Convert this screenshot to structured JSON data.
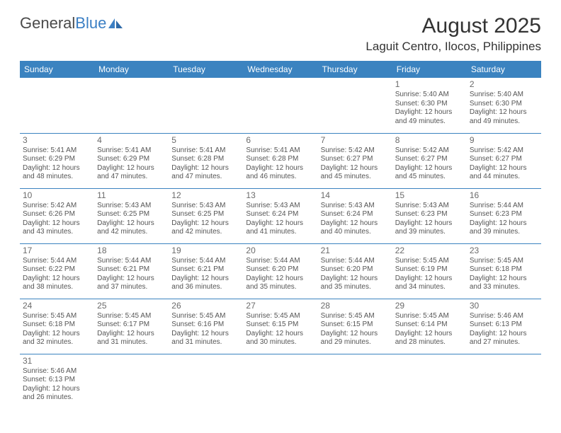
{
  "logo": {
    "text1": "General",
    "text2": "Blue"
  },
  "title": "August 2025",
  "location": "Laguit Centro, Ilocos, Philippines",
  "colors": {
    "header_bg": "#3b83c0",
    "header_text": "#ffffff",
    "border": "#3b83c0",
    "text": "#555555",
    "daynum": "#6b6b6b",
    "title": "#333333"
  },
  "day_headers": [
    "Sunday",
    "Monday",
    "Tuesday",
    "Wednesday",
    "Thursday",
    "Friday",
    "Saturday"
  ],
  "weeks": [
    [
      null,
      null,
      null,
      null,
      null,
      {
        "n": "1",
        "sr": "Sunrise: 5:40 AM",
        "ss": "Sunset: 6:30 PM",
        "d1": "Daylight: 12 hours",
        "d2": "and 49 minutes."
      },
      {
        "n": "2",
        "sr": "Sunrise: 5:40 AM",
        "ss": "Sunset: 6:30 PM",
        "d1": "Daylight: 12 hours",
        "d2": "and 49 minutes."
      }
    ],
    [
      {
        "n": "3",
        "sr": "Sunrise: 5:41 AM",
        "ss": "Sunset: 6:29 PM",
        "d1": "Daylight: 12 hours",
        "d2": "and 48 minutes."
      },
      {
        "n": "4",
        "sr": "Sunrise: 5:41 AM",
        "ss": "Sunset: 6:29 PM",
        "d1": "Daylight: 12 hours",
        "d2": "and 47 minutes."
      },
      {
        "n": "5",
        "sr": "Sunrise: 5:41 AM",
        "ss": "Sunset: 6:28 PM",
        "d1": "Daylight: 12 hours",
        "d2": "and 47 minutes."
      },
      {
        "n": "6",
        "sr": "Sunrise: 5:41 AM",
        "ss": "Sunset: 6:28 PM",
        "d1": "Daylight: 12 hours",
        "d2": "and 46 minutes."
      },
      {
        "n": "7",
        "sr": "Sunrise: 5:42 AM",
        "ss": "Sunset: 6:27 PM",
        "d1": "Daylight: 12 hours",
        "d2": "and 45 minutes."
      },
      {
        "n": "8",
        "sr": "Sunrise: 5:42 AM",
        "ss": "Sunset: 6:27 PM",
        "d1": "Daylight: 12 hours",
        "d2": "and 45 minutes."
      },
      {
        "n": "9",
        "sr": "Sunrise: 5:42 AM",
        "ss": "Sunset: 6:27 PM",
        "d1": "Daylight: 12 hours",
        "d2": "and 44 minutes."
      }
    ],
    [
      {
        "n": "10",
        "sr": "Sunrise: 5:42 AM",
        "ss": "Sunset: 6:26 PM",
        "d1": "Daylight: 12 hours",
        "d2": "and 43 minutes."
      },
      {
        "n": "11",
        "sr": "Sunrise: 5:43 AM",
        "ss": "Sunset: 6:25 PM",
        "d1": "Daylight: 12 hours",
        "d2": "and 42 minutes."
      },
      {
        "n": "12",
        "sr": "Sunrise: 5:43 AM",
        "ss": "Sunset: 6:25 PM",
        "d1": "Daylight: 12 hours",
        "d2": "and 42 minutes."
      },
      {
        "n": "13",
        "sr": "Sunrise: 5:43 AM",
        "ss": "Sunset: 6:24 PM",
        "d1": "Daylight: 12 hours",
        "d2": "and 41 minutes."
      },
      {
        "n": "14",
        "sr": "Sunrise: 5:43 AM",
        "ss": "Sunset: 6:24 PM",
        "d1": "Daylight: 12 hours",
        "d2": "and 40 minutes."
      },
      {
        "n": "15",
        "sr": "Sunrise: 5:43 AM",
        "ss": "Sunset: 6:23 PM",
        "d1": "Daylight: 12 hours",
        "d2": "and 39 minutes."
      },
      {
        "n": "16",
        "sr": "Sunrise: 5:44 AM",
        "ss": "Sunset: 6:23 PM",
        "d1": "Daylight: 12 hours",
        "d2": "and 39 minutes."
      }
    ],
    [
      {
        "n": "17",
        "sr": "Sunrise: 5:44 AM",
        "ss": "Sunset: 6:22 PM",
        "d1": "Daylight: 12 hours",
        "d2": "and 38 minutes."
      },
      {
        "n": "18",
        "sr": "Sunrise: 5:44 AM",
        "ss": "Sunset: 6:21 PM",
        "d1": "Daylight: 12 hours",
        "d2": "and 37 minutes."
      },
      {
        "n": "19",
        "sr": "Sunrise: 5:44 AM",
        "ss": "Sunset: 6:21 PM",
        "d1": "Daylight: 12 hours",
        "d2": "and 36 minutes."
      },
      {
        "n": "20",
        "sr": "Sunrise: 5:44 AM",
        "ss": "Sunset: 6:20 PM",
        "d1": "Daylight: 12 hours",
        "d2": "and 35 minutes."
      },
      {
        "n": "21",
        "sr": "Sunrise: 5:44 AM",
        "ss": "Sunset: 6:20 PM",
        "d1": "Daylight: 12 hours",
        "d2": "and 35 minutes."
      },
      {
        "n": "22",
        "sr": "Sunrise: 5:45 AM",
        "ss": "Sunset: 6:19 PM",
        "d1": "Daylight: 12 hours",
        "d2": "and 34 minutes."
      },
      {
        "n": "23",
        "sr": "Sunrise: 5:45 AM",
        "ss": "Sunset: 6:18 PM",
        "d1": "Daylight: 12 hours",
        "d2": "and 33 minutes."
      }
    ],
    [
      {
        "n": "24",
        "sr": "Sunrise: 5:45 AM",
        "ss": "Sunset: 6:18 PM",
        "d1": "Daylight: 12 hours",
        "d2": "and 32 minutes."
      },
      {
        "n": "25",
        "sr": "Sunrise: 5:45 AM",
        "ss": "Sunset: 6:17 PM",
        "d1": "Daylight: 12 hours",
        "d2": "and 31 minutes."
      },
      {
        "n": "26",
        "sr": "Sunrise: 5:45 AM",
        "ss": "Sunset: 6:16 PM",
        "d1": "Daylight: 12 hours",
        "d2": "and 31 minutes."
      },
      {
        "n": "27",
        "sr": "Sunrise: 5:45 AM",
        "ss": "Sunset: 6:15 PM",
        "d1": "Daylight: 12 hours",
        "d2": "and 30 minutes."
      },
      {
        "n": "28",
        "sr": "Sunrise: 5:45 AM",
        "ss": "Sunset: 6:15 PM",
        "d1": "Daylight: 12 hours",
        "d2": "and 29 minutes."
      },
      {
        "n": "29",
        "sr": "Sunrise: 5:45 AM",
        "ss": "Sunset: 6:14 PM",
        "d1": "Daylight: 12 hours",
        "d2": "and 28 minutes."
      },
      {
        "n": "30",
        "sr": "Sunrise: 5:46 AM",
        "ss": "Sunset: 6:13 PM",
        "d1": "Daylight: 12 hours",
        "d2": "and 27 minutes."
      }
    ],
    [
      {
        "n": "31",
        "sr": "Sunrise: 5:46 AM",
        "ss": "Sunset: 6:13 PM",
        "d1": "Daylight: 12 hours",
        "d2": "and 26 minutes."
      },
      null,
      null,
      null,
      null,
      null,
      null
    ]
  ]
}
